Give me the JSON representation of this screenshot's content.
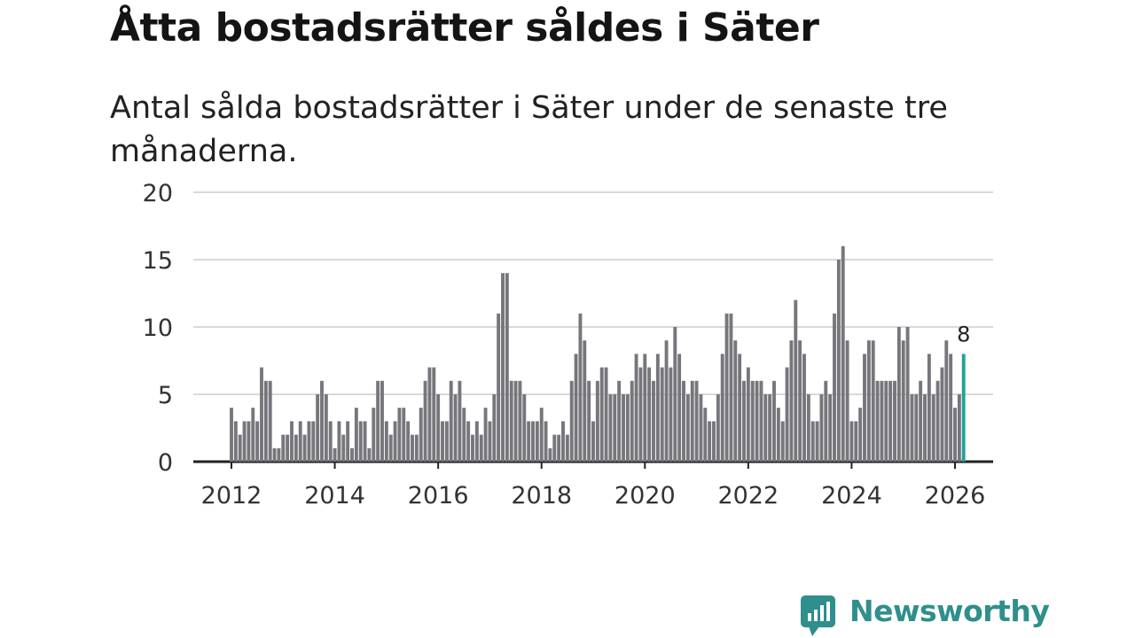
{
  "title": "Åtta bostadsrätter såldes i Säter",
  "subtitle": "Antal sålda bostadsrätter i Säter under de senaste tre månaderna.",
  "brand": {
    "name": "Newsworthy",
    "color": "#2f8f8c"
  },
  "chart_data": {
    "type": "bar",
    "title": "Åtta bostadsrätter såldes i Säter",
    "xlabel": "",
    "ylabel": "",
    "ylim": [
      0,
      20
    ],
    "yticks": [
      0,
      5,
      10,
      15,
      20
    ],
    "xticks": [
      "2012",
      "2014",
      "2016",
      "2018",
      "2020",
      "2022",
      "2024",
      "2026"
    ],
    "grid": true,
    "start": "2012-01",
    "end": "2026-01",
    "bar_color": "#77767c",
    "highlight_color": "#21a39c",
    "highlight_label": "8",
    "values": [
      4,
      3,
      2,
      3,
      3,
      4,
      3,
      7,
      6,
      6,
      1,
      1,
      2,
      2,
      3,
      2,
      3,
      2,
      3,
      3,
      5,
      6,
      5,
      3,
      1,
      3,
      2,
      3,
      1,
      4,
      3,
      3,
      1,
      4,
      6,
      6,
      3,
      2,
      3,
      4,
      4,
      3,
      2,
      2,
      4,
      6,
      7,
      7,
      5,
      3,
      3,
      6,
      5,
      6,
      4,
      3,
      2,
      3,
      2,
      4,
      3,
      5,
      11,
      14,
      14,
      6,
      6,
      6,
      5,
      3,
      3,
      3,
      4,
      3,
      1,
      2,
      2,
      3,
      2,
      6,
      8,
      11,
      9,
      6,
      3,
      6,
      7,
      7,
      5,
      5,
      6,
      5,
      5,
      6,
      8,
      7,
      8,
      7,
      6,
      8,
      7,
      9,
      7,
      10,
      8,
      6,
      5,
      6,
      6,
      5,
      4,
      3,
      3,
      5,
      8,
      11,
      11,
      9,
      8,
      6,
      7,
      6,
      6,
      6,
      5,
      5,
      6,
      4,
      3,
      7,
      9,
      12,
      9,
      8,
      5,
      3,
      3,
      5,
      6,
      5,
      11,
      15,
      16,
      9,
      3,
      3,
      4,
      8,
      9,
      9,
      6,
      6,
      6,
      6,
      6,
      10,
      9,
      10,
      5,
      5,
      6,
      5,
      8,
      5,
      6,
      7,
      9,
      8,
      4,
      5,
      8
    ]
  }
}
